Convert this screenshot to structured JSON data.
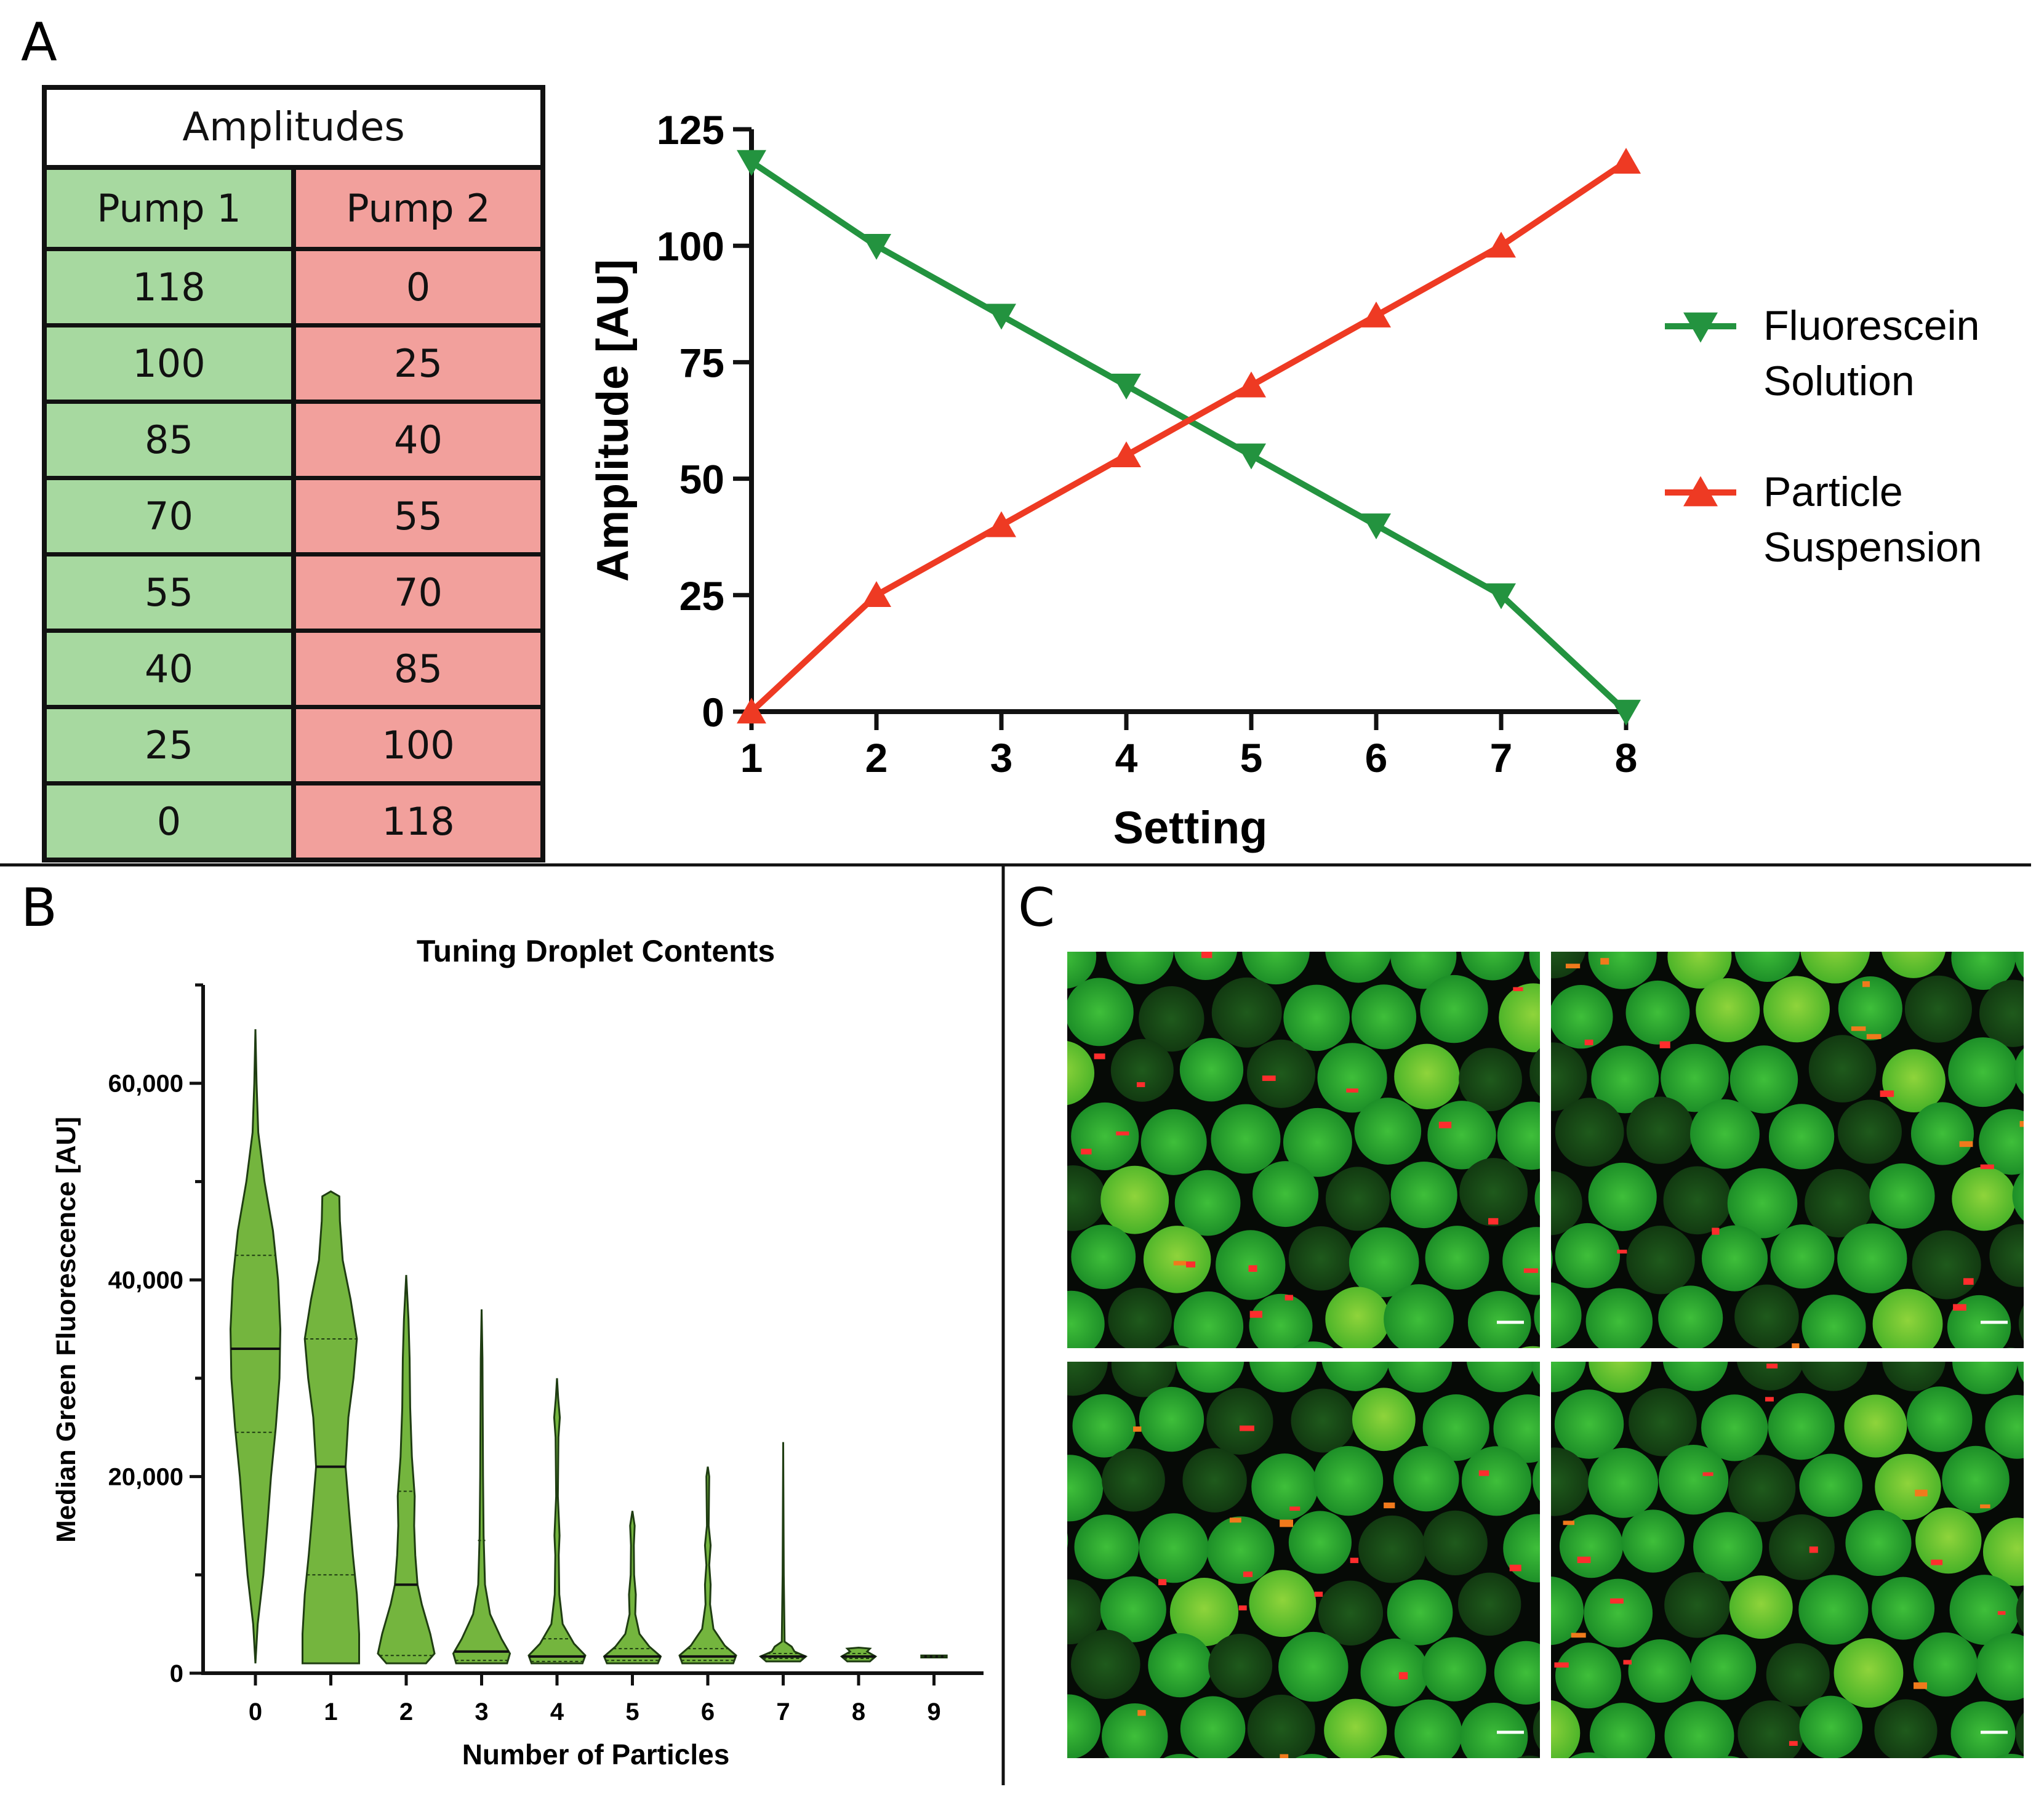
{
  "panel_labels": {
    "a": "A",
    "b": "B",
    "c": "C"
  },
  "table": {
    "title": "Amplitudes",
    "headers": [
      "Pump 1",
      "Pump 2"
    ],
    "rows": [
      [
        "118",
        "0"
      ],
      [
        "100",
        "25"
      ],
      [
        "85",
        "40"
      ],
      [
        "70",
        "55"
      ],
      [
        "55",
        "70"
      ],
      [
        "40",
        "85"
      ],
      [
        "25",
        "100"
      ],
      [
        "0",
        "118"
      ]
    ]
  },
  "colors": {
    "green": "#23933f",
    "red": "#ee3a23",
    "violin_fill": "#74b53e",
    "table_green": "#a7d9a0",
    "table_red": "#f2a09c"
  },
  "chart_data": [
    {
      "type": "line",
      "title": "",
      "xlabel": "Setting",
      "ylabel": "Amplitude [AU]",
      "x": [
        1,
        2,
        3,
        4,
        5,
        6,
        7,
        8
      ],
      "xlim": [
        1,
        8
      ],
      "ylim": [
        0,
        125
      ],
      "yticks": [
        0,
        25,
        50,
        75,
        100,
        125
      ],
      "series": [
        {
          "name": "Fluorescein Solution",
          "legend_lines": [
            "Fluorescein",
            "Solution"
          ],
          "marker": "triangle-down",
          "color": "#23933f",
          "values": [
            118,
            100,
            85,
            70,
            55,
            40,
            25,
            0
          ]
        },
        {
          "name": "Particle Suspension",
          "legend_lines": [
            "Particle",
            "Suspension"
          ],
          "marker": "triangle-up",
          "color": "#ee3a23",
          "values": [
            0,
            25,
            40,
            55,
            70,
            85,
            100,
            118
          ]
        }
      ],
      "legend": "right"
    },
    {
      "type": "violin",
      "title": "Tuning Droplet Contents",
      "xlabel": "Number of Particles",
      "ylabel": "Median Green Fluorescence [AU]",
      "categories": [
        "0",
        "1",
        "2",
        "3",
        "4",
        "5",
        "6",
        "7",
        "8",
        "9"
      ],
      "ylim": [
        0,
        70000
      ],
      "yticks": [
        0,
        20000,
        40000,
        60000
      ],
      "ytick_labels": [
        "0",
        "20,000",
        "40,000",
        "60,000"
      ],
      "violins": [
        {
          "min": 1000,
          "max": 65500,
          "median": 33000,
          "q1": 24500,
          "q3": 42500,
          "profile": [
            [
              1000,
              0.0
            ],
            [
              5000,
              0.08
            ],
            [
              10000,
              0.28
            ],
            [
              15000,
              0.42
            ],
            [
              20000,
              0.55
            ],
            [
              25000,
              0.72
            ],
            [
              30000,
              0.85
            ],
            [
              35000,
              0.88
            ],
            [
              40000,
              0.8
            ],
            [
              45000,
              0.62
            ],
            [
              50000,
              0.32
            ],
            [
              55000,
              0.1
            ],
            [
              60000,
              0.04
            ],
            [
              65500,
              0.0
            ]
          ]
        },
        {
          "min": 1000,
          "max": 49000,
          "median": 21000,
          "q1": 10000,
          "q3": 34000,
          "profile": [
            [
              1000,
              1.0
            ],
            [
              4000,
              1.0
            ],
            [
              8000,
              0.92
            ],
            [
              12000,
              0.78
            ],
            [
              16000,
              0.66
            ],
            [
              21000,
              0.52
            ],
            [
              26000,
              0.62
            ],
            [
              30000,
              0.8
            ],
            [
              34000,
              0.92
            ],
            [
              38000,
              0.7
            ],
            [
              42000,
              0.42
            ],
            [
              46000,
              0.32
            ],
            [
              48500,
              0.3
            ],
            [
              49000,
              0.0
            ]
          ]
        },
        {
          "min": 1000,
          "max": 40500,
          "median": 9000,
          "q1": 1800,
          "q3": 18500,
          "profile": [
            [
              1000,
              0.7
            ],
            [
              2000,
              1.0
            ],
            [
              4000,
              0.85
            ],
            [
              7000,
              0.55
            ],
            [
              9000,
              0.4
            ],
            [
              12000,
              0.32
            ],
            [
              15000,
              0.28
            ],
            [
              18000,
              0.3
            ],
            [
              22000,
              0.2
            ],
            [
              27000,
              0.14
            ],
            [
              32000,
              0.12
            ],
            [
              36000,
              0.08
            ],
            [
              40500,
              0.0
            ]
          ]
        },
        {
          "min": 1000,
          "max": 37000,
          "median": 2200,
          "q1": 1300,
          "q3": 13500,
          "profile": [
            [
              1000,
              0.9
            ],
            [
              2000,
              1.0
            ],
            [
              3500,
              0.7
            ],
            [
              6000,
              0.3
            ],
            [
              9000,
              0.12
            ],
            [
              14000,
              0.07
            ],
            [
              20000,
              0.05
            ],
            [
              26000,
              0.04
            ],
            [
              32000,
              0.03
            ],
            [
              37000,
              0.0
            ]
          ]
        },
        {
          "min": 1000,
          "max": 30000,
          "median": 1700,
          "q1": 1200,
          "q3": 3500,
          "profile": [
            [
              1000,
              0.9
            ],
            [
              1800,
              1.0
            ],
            [
              3000,
              0.6
            ],
            [
              5000,
              0.2
            ],
            [
              8000,
              0.08
            ],
            [
              12000,
              0.06
            ],
            [
              14000,
              0.09
            ],
            [
              18000,
              0.03
            ],
            [
              24000,
              0.05
            ],
            [
              26000,
              0.1
            ],
            [
              28000,
              0.04
            ],
            [
              30000,
              0.0
            ]
          ]
        },
        {
          "min": 1000,
          "max": 16500,
          "median": 1700,
          "q1": 1300,
          "q3": 2500,
          "profile": [
            [
              1000,
              0.9
            ],
            [
              1700,
              1.0
            ],
            [
              2700,
              0.6
            ],
            [
              4000,
              0.25
            ],
            [
              6000,
              0.1
            ],
            [
              8000,
              0.12
            ],
            [
              10000,
              0.06
            ],
            [
              13000,
              0.05
            ],
            [
              15000,
              0.08
            ],
            [
              16500,
              0.0
            ]
          ]
        },
        {
          "min": 1000,
          "max": 21000,
          "median": 1700,
          "q1": 1300,
          "q3": 2500,
          "profile": [
            [
              1000,
              0.9
            ],
            [
              1800,
              1.0
            ],
            [
              2800,
              0.6
            ],
            [
              4500,
              0.2
            ],
            [
              7000,
              0.08
            ],
            [
              9000,
              0.1
            ],
            [
              11000,
              0.05
            ],
            [
              13000,
              0.1
            ],
            [
              15000,
              0.03
            ],
            [
              20000,
              0.05
            ],
            [
              21000,
              0.0
            ]
          ]
        },
        {
          "min": 1200,
          "max": 23500,
          "median": 1700,
          "q1": 1500,
          "q3": 2000,
          "profile": [
            [
              1200,
              0.6
            ],
            [
              1700,
              0.8
            ],
            [
              2200,
              0.4
            ],
            [
              2700,
              0.3
            ],
            [
              3200,
              0.05
            ],
            [
              10000,
              0.02
            ],
            [
              23500,
              0.0
            ]
          ]
        },
        {
          "min": 1200,
          "max": 2600,
          "median": 1700,
          "q1": 1500,
          "q3": 2000,
          "profile": [
            [
              1200,
              0.4
            ],
            [
              1700,
              0.6
            ],
            [
              2200,
              0.3
            ],
            [
              2500,
              0.4
            ],
            [
              2600,
              0.0
            ]
          ]
        },
        {
          "min": 1600,
          "max": 1800,
          "median": 1700,
          "q1": 1650,
          "q3": 1750,
          "profile": [
            [
              1600,
              0.45
            ],
            [
              1800,
              0.45
            ]
          ]
        }
      ]
    }
  ]
}
